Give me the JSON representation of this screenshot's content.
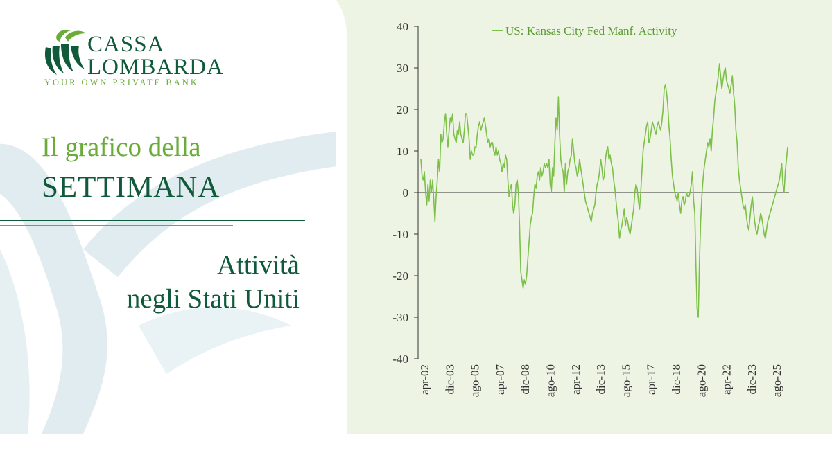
{
  "brand": {
    "name_line1": "CASSA",
    "name_line2": "LOMBARDA",
    "tagline": "YOUR OWN PRIVATE BANK",
    "logo_icon": "leaf-logo-icon",
    "colors": {
      "dark_green": "#0f5a3a",
      "light_green": "#6aab3a",
      "panel": "#eef4e4",
      "deco": "#dbe9ec"
    }
  },
  "headline": {
    "line1": "Il grafico della",
    "line2": "SETTIMANA"
  },
  "subtitle": {
    "line1": "Attività",
    "line2": "negli Stati Uniti"
  },
  "chart_data": {
    "type": "line",
    "title": "",
    "xlabel": "",
    "ylabel": "",
    "ylim": [
      -40,
      40
    ],
    "y_ticks": [
      "40",
      "30",
      "20",
      "10",
      "0",
      "-10",
      "-20",
      "-30",
      "-40"
    ],
    "x_tick_labels": [
      "apr-02",
      "dic-03",
      "ago-05",
      "apr-07",
      "dic-08",
      "ago-10",
      "apr-12",
      "dic-13",
      "ago-15",
      "apr-17",
      "dic-18",
      "ago-20",
      "apr-22",
      "dic-23",
      "ago-25"
    ],
    "legend": "top-center",
    "grid": false,
    "color": "#7cc04a",
    "series": [
      {
        "name": "US: Kansas City Fed Manf. Activity",
        "values": [
          8,
          4,
          3,
          5,
          0,
          -3,
          2,
          -2,
          3,
          0,
          3,
          -2,
          -7,
          -1,
          3,
          8,
          5,
          14,
          12,
          13,
          17,
          19,
          14,
          11,
          15,
          18,
          17,
          19,
          14,
          13,
          12,
          15,
          14,
          17,
          14,
          13,
          12,
          15,
          19,
          19,
          16,
          13,
          8,
          10,
          9,
          9,
          11,
          11,
          14,
          16,
          17,
          15,
          16,
          17,
          18,
          16,
          14,
          12,
          13,
          11,
          12,
          12,
          10,
          9,
          11,
          9,
          10,
          8,
          7,
          5,
          7,
          6,
          9,
          8,
          3,
          -1,
          1,
          2,
          -3,
          -5,
          -3,
          2,
          3,
          0,
          -8,
          -19,
          -21,
          -23,
          -21,
          -22,
          -20,
          -16,
          -12,
          -8,
          -6,
          -5,
          -1,
          2,
          1,
          4,
          5,
          3,
          6,
          4,
          5,
          7,
          6,
          7,
          6,
          8,
          2,
          0,
          6,
          4,
          12,
          18,
          15,
          23,
          14,
          8,
          6,
          5,
          0,
          7,
          2,
          5,
          6,
          8,
          9,
          13,
          10,
          7,
          6,
          4,
          5,
          8,
          6,
          4,
          2,
          0,
          -2,
          -3,
          -4,
          -5,
          -6,
          -7,
          -5,
          -4,
          -3,
          0,
          2,
          3,
          5,
          8,
          6,
          3,
          4,
          8,
          10,
          11,
          8,
          9,
          7,
          6,
          3,
          1,
          -2,
          -5,
          -7,
          -11,
          -9,
          -8,
          -6,
          -4,
          -8,
          -6,
          -7,
          -9,
          -10,
          -8,
          -6,
          -4,
          0,
          2,
          1,
          -2,
          -4,
          0,
          5,
          10,
          12,
          14,
          16,
          17,
          12,
          13,
          15,
          17,
          16,
          15,
          14,
          16,
          17,
          16,
          15,
          17,
          20,
          25,
          26,
          24,
          21,
          16,
          13,
          8,
          4,
          2,
          0,
          -1,
          -2,
          0,
          -3,
          -5,
          -2,
          -1,
          -3,
          -2,
          0,
          -1,
          -1,
          0,
          2,
          5,
          -2,
          -5,
          -18,
          -28,
          -30,
          -17,
          -7,
          -1,
          3,
          6,
          8,
          10,
          12,
          11,
          13,
          10,
          15,
          18,
          22,
          24,
          26,
          28,
          31,
          28,
          25,
          27,
          29,
          30,
          27,
          26,
          25,
          24,
          26,
          28,
          24,
          21,
          15,
          12,
          6,
          3,
          1,
          -1,
          -3,
          -4,
          -3,
          -6,
          -8,
          -9,
          -6,
          -3,
          -1,
          -4,
          -7,
          -9,
          -10,
          -8,
          -7,
          -5,
          -6,
          -8,
          -10,
          -11,
          -9,
          -7,
          -6,
          -5,
          -4,
          -3,
          -2,
          -1,
          0,
          1,
          2,
          3,
          5,
          7,
          2,
          0,
          5,
          8,
          11
        ]
      }
    ]
  }
}
